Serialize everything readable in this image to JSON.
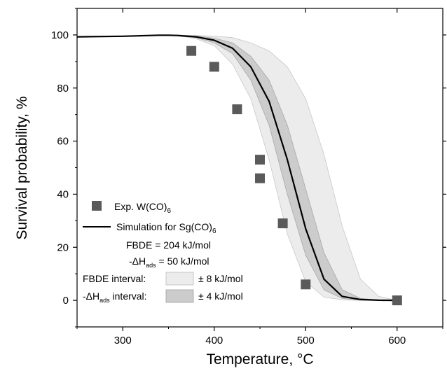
{
  "chart_data": {
    "type": "scatter",
    "title": "",
    "xlabel": "Temperature, °C",
    "ylabel": "Survival probability, %",
    "xlim": [
      250,
      650
    ],
    "ylim": [
      -10,
      110
    ],
    "x_ticks": [
      300,
      400,
      500,
      600
    ],
    "y_ticks": [
      0,
      20,
      40,
      60,
      80,
      100
    ],
    "grid": false,
    "legend_position": "bottom-left",
    "series": [
      {
        "name": "Exp. W(CO)6",
        "kind": "scatter",
        "marker": "square",
        "color": "#5a5a5a",
        "x": [
          375,
          400,
          425,
          450,
          450,
          475,
          500,
          600
        ],
        "y": [
          94,
          88,
          72,
          53,
          46,
          29,
          6,
          0
        ]
      },
      {
        "name": "Simulation for Sg(CO)6",
        "kind": "line",
        "color": "#000000",
        "x": [
          250,
          300,
          340,
          350,
          360,
          380,
          400,
          420,
          440,
          460,
          480,
          500,
          520,
          540,
          560,
          580,
          600
        ],
        "y": [
          99.3,
          99.5,
          99.9,
          99.9,
          99.8,
          99.3,
          98,
          95,
          88,
          75,
          53,
          27,
          8,
          1.5,
          0.3,
          0.05,
          0
        ]
      },
      {
        "name": "FBDE interval: ± 8 kJ/mol",
        "kind": "band",
        "color": "#ececec",
        "x": [
          250,
          300,
          340,
          350,
          360,
          380,
          400,
          420,
          440,
          460,
          480,
          500,
          520,
          540,
          560,
          580,
          600
        ],
        "lower": [
          99.3,
          99.5,
          99.9,
          99.9,
          99.7,
          98.6,
          96,
          89,
          76,
          53,
          25,
          7,
          1.2,
          0.2,
          0,
          0,
          0
        ],
        "upper": [
          99.3,
          99.5,
          99.9,
          99.9,
          99.9,
          99.8,
          99.5,
          99,
          97,
          94,
          88,
          76,
          55,
          28,
          8,
          1.5,
          0
        ]
      },
      {
        "name": "-ΔHads interval: ± 4 kJ/mol",
        "kind": "band",
        "color": "#cccccc",
        "x": [
          250,
          300,
          340,
          350,
          360,
          380,
          400,
          420,
          440,
          460,
          480,
          500,
          520,
          540,
          560,
          580,
          600
        ],
        "lower": [
          99.3,
          99.5,
          99.9,
          99.9,
          99.8,
          99.0,
          97,
          93,
          83,
          66,
          40,
          17,
          4,
          0.7,
          0.1,
          0,
          0
        ],
        "upper": [
          99.3,
          99.5,
          99.9,
          99.9,
          99.9,
          99.6,
          98.8,
          97,
          92,
          83,
          66,
          42,
          18,
          4,
          0.8,
          0.1,
          0
        ]
      }
    ],
    "legend": {
      "scatter_label": "Exp. W(CO)",
      "scatter_sub": "6",
      "line_label": "Simulation for Sg(CO)",
      "line_sub": "6",
      "fbde_value": "FBDE = 204 kJ/mol",
      "dh_prefix": "-ΔH",
      "dh_sub": "ads",
      "dh_suffix": " = 50 kJ/mol",
      "fbde_interval_label": "FBDE interval:",
      "fbde_interval_value": "± 8 kJ/mol",
      "dh_interval_prefix": "-ΔH",
      "dh_interval_sub": "ads",
      "dh_interval_suffix": " interval:",
      "dh_interval_value": "± 4 kJ/mol"
    }
  }
}
